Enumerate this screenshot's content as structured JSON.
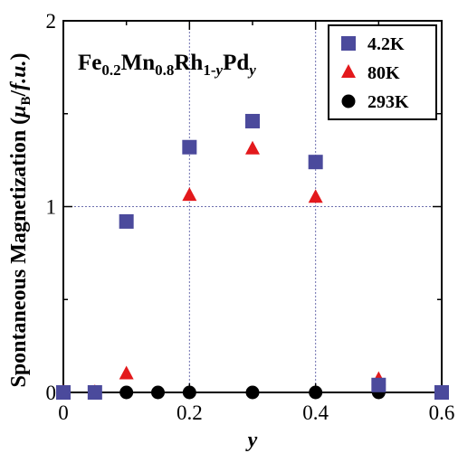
{
  "chart_data": {
    "type": "scatter",
    "title": "",
    "compound_label": {
      "parts": [
        {
          "text": "Fe",
          "sub": false,
          "italic": false
        },
        {
          "text": "0.2",
          "sub": true,
          "italic": false
        },
        {
          "text": "Mn",
          "sub": false,
          "italic": false
        },
        {
          "text": "0.8",
          "sub": true,
          "italic": false
        },
        {
          "text": "Rh",
          "sub": false,
          "italic": false
        },
        {
          "text": "1-",
          "sub": true,
          "italic": false
        },
        {
          "text": "y",
          "sub": true,
          "italic": true
        },
        {
          "text": "Pd",
          "sub": false,
          "italic": false
        },
        {
          "text": "y",
          "sub": true,
          "italic": true
        }
      ]
    },
    "xlabel": "y",
    "ylabel": {
      "parts": [
        {
          "text": "Spontaneous Magnetization (",
          "italic": false,
          "sub": false
        },
        {
          "text": "μ",
          "italic": true,
          "sub": false
        },
        {
          "text": "B",
          "italic": false,
          "sub": true
        },
        {
          "text": "/",
          "italic": false,
          "sub": false
        },
        {
          "text": "f.u.",
          "italic": true,
          "sub": false
        },
        {
          "text": ")",
          "italic": false,
          "sub": false
        }
      ]
    },
    "xlim": [
      0,
      0.6
    ],
    "ylim": [
      0,
      2
    ],
    "xticks": [
      0,
      0.2,
      0.4,
      0.6
    ],
    "xtick_labels": [
      "0",
      "0.2",
      "0.4",
      "0.6"
    ],
    "yticks": [
      0,
      1,
      2
    ],
    "ytick_labels": [
      "0",
      "1",
      "2"
    ],
    "grid": {
      "x": [
        0.2,
        0.4
      ],
      "y": [
        1
      ]
    },
    "legend_position": "top-right",
    "series": [
      {
        "name": "4.2K",
        "marker": "square",
        "color": "#4b4a9c",
        "points": [
          {
            "x": 0,
            "y": 0
          },
          {
            "x": 0.05,
            "y": 0
          },
          {
            "x": 0.1,
            "y": 0.92
          },
          {
            "x": 0.2,
            "y": 1.32
          },
          {
            "x": 0.3,
            "y": 1.46
          },
          {
            "x": 0.4,
            "y": 1.24
          },
          {
            "x": 0.5,
            "y": 0.04
          },
          {
            "x": 0.6,
            "y": 0
          }
        ]
      },
      {
        "name": "80K",
        "marker": "triangle",
        "color": "#e3191c",
        "points": [
          {
            "x": 0,
            "y": 0
          },
          {
            "x": 0.05,
            "y": 0
          },
          {
            "x": 0.1,
            "y": 0.1
          },
          {
            "x": 0.2,
            "y": 1.06
          },
          {
            "x": 0.3,
            "y": 1.31
          },
          {
            "x": 0.4,
            "y": 1.05
          },
          {
            "x": 0.5,
            "y": 0.07
          }
        ]
      },
      {
        "name": "293K",
        "marker": "circle",
        "color": "#000000",
        "points": [
          {
            "x": 0,
            "y": 0
          },
          {
            "x": 0.05,
            "y": 0
          },
          {
            "x": 0.1,
            "y": 0
          },
          {
            "x": 0.15,
            "y": 0
          },
          {
            "x": 0.2,
            "y": 0
          },
          {
            "x": 0.3,
            "y": 0
          },
          {
            "x": 0.4,
            "y": 0
          },
          {
            "x": 0.5,
            "y": 0
          }
        ]
      }
    ]
  }
}
